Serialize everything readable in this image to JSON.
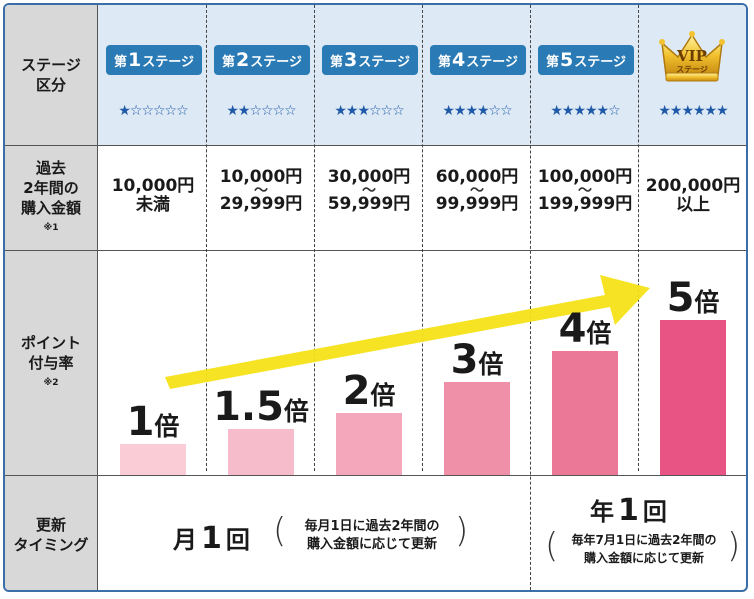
{
  "row_labels": {
    "stage": [
      "ステージ",
      "区分"
    ],
    "amount": [
      "過去",
      "2年間の",
      "購入金額"
    ],
    "amount_note": "※1",
    "points": [
      "ポイント",
      "付与率"
    ],
    "points_note": "※2",
    "renewal": [
      "更新",
      "タイミング"
    ]
  },
  "stages": [
    {
      "prefix": "第",
      "num": "1",
      "suffix": "ステージ",
      "stars": "★☆☆☆☆☆",
      "amount_line1": "10,000円",
      "amount_tilde": "",
      "amount_line2": "未満",
      "multiplier": "1",
      "multiplier_unit": "倍",
      "bar_color": "#f9ccd6",
      "rate": 1
    },
    {
      "prefix": "第",
      "num": "2",
      "suffix": "ステージ",
      "stars": "★★☆☆☆☆",
      "amount_line1": "10,000円",
      "amount_tilde": "〜",
      "amount_line2": "29,999円",
      "multiplier": "1.5",
      "multiplier_unit": "倍",
      "bar_color": "#f7bccb",
      "rate": 1.5
    },
    {
      "prefix": "第",
      "num": "3",
      "suffix": "ステージ",
      "stars": "★★★☆☆☆",
      "amount_line1": "30,000円",
      "amount_tilde": "〜",
      "amount_line2": "59,999円",
      "multiplier": "2",
      "multiplier_unit": "倍",
      "bar_color": "#f4a7bb",
      "rate": 2
    },
    {
      "prefix": "第",
      "num": "4",
      "suffix": "ステージ",
      "stars": "★★★★☆☆",
      "amount_line1": "60,000円",
      "amount_tilde": "〜",
      "amount_line2": "99,999円",
      "multiplier": "3",
      "multiplier_unit": "倍",
      "bar_color": "#f090a8",
      "rate": 3
    },
    {
      "prefix": "第",
      "num": "5",
      "suffix": "ステージ",
      "stars": "★★★★★☆",
      "amount_line1": "100,000円",
      "amount_tilde": "〜",
      "amount_line2": "199,999円",
      "multiplier": "4",
      "multiplier_unit": "倍",
      "bar_color": "#ec7898",
      "rate": 4
    },
    {
      "prefix": "",
      "num": "VIP",
      "suffix": "ステージ",
      "stars": "★★★★★★",
      "amount_line1": "200,000円",
      "amount_tilde": "",
      "amount_line2": "以上",
      "multiplier": "5",
      "multiplier_unit": "倍",
      "bar_color": "#e85585",
      "rate": 5
    }
  ],
  "renewal": {
    "monthly": {
      "pre": "月",
      "num": "1",
      "post": "回",
      "note1": "毎月1日に過去2年間の",
      "note2": "購入金額に応じて更新"
    },
    "yearly": {
      "pre": "年",
      "num": "1",
      "post": "回",
      "note1": "毎年7月1日に過去2年間の",
      "note2": "購入金額に応じて更新"
    }
  },
  "colors": {
    "header_bg": "#dde9f5",
    "label_bg": "#d8d8d8",
    "stage_badge": "#2a7ab5",
    "star": "#1f5aa8",
    "arrow": "#f6e318",
    "border": "#3a6ea8"
  }
}
